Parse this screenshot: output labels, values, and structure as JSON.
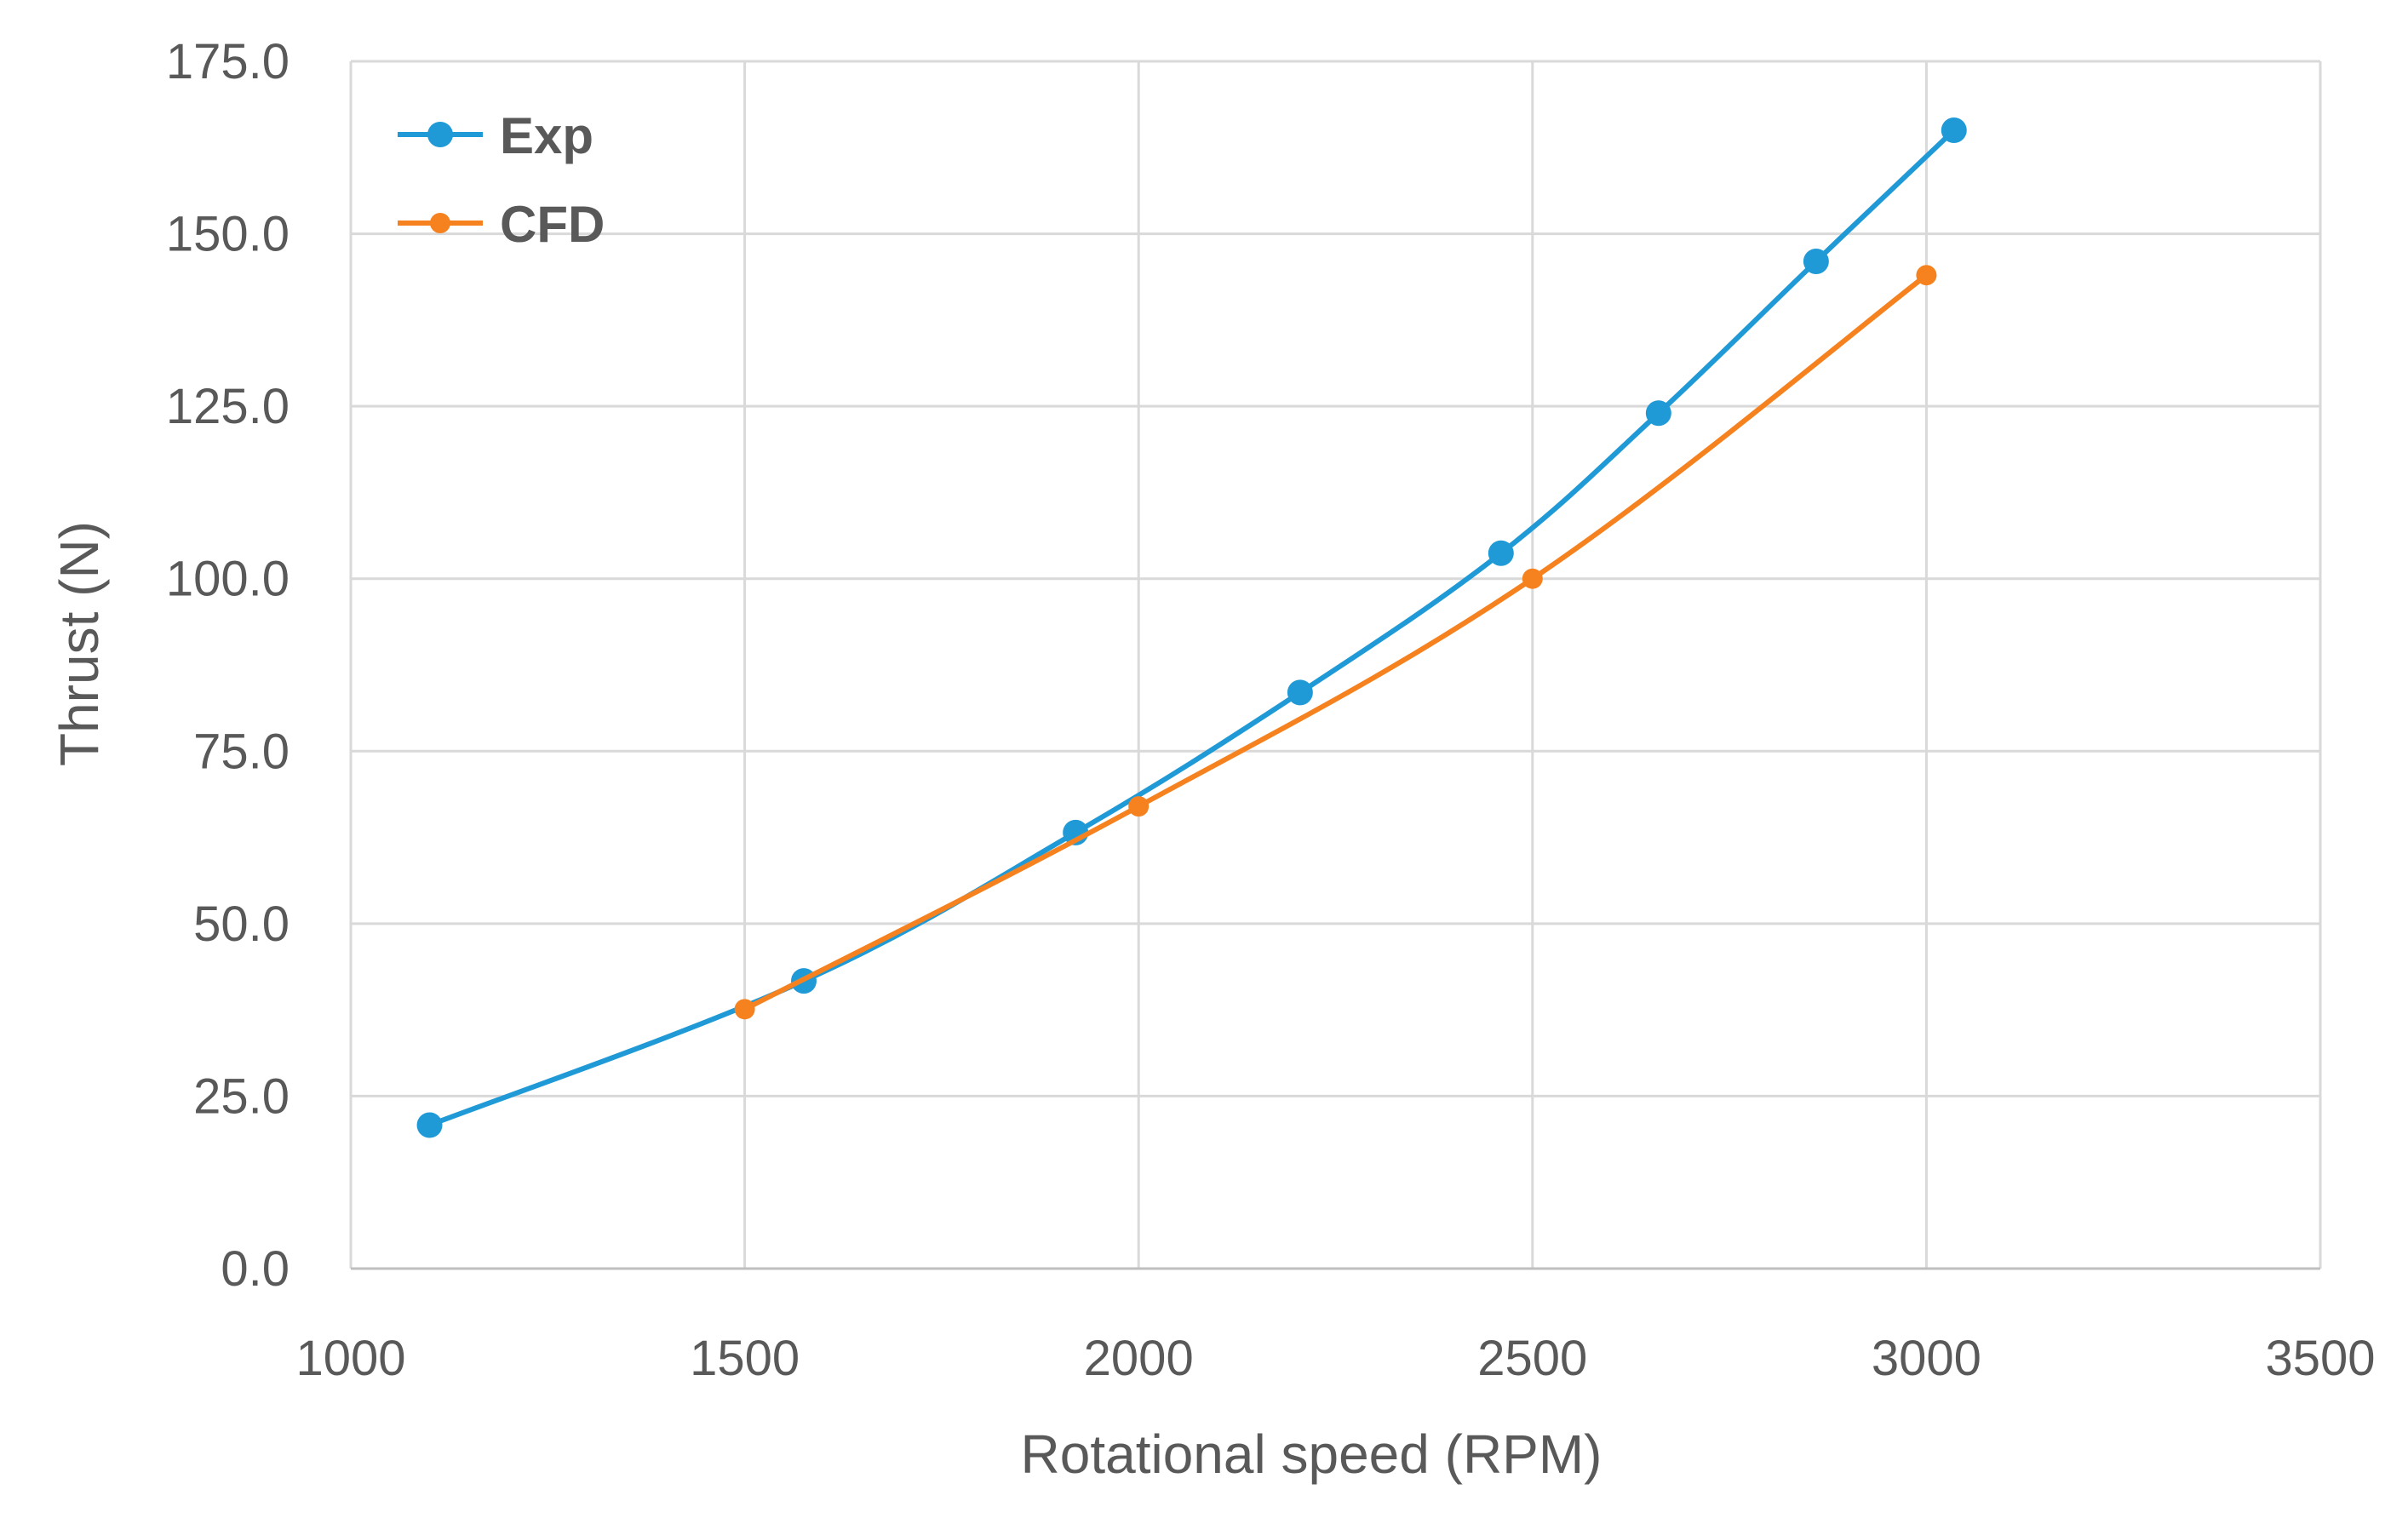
{
  "chart_data": {
    "type": "line",
    "title": "",
    "xlabel": "Rotational speed (RPM)",
    "ylabel": "Thrust (N)",
    "xlim": [
      1000,
      3500
    ],
    "ylim": [
      0,
      175
    ],
    "xticks": [
      1000,
      1500,
      2000,
      2500,
      3000,
      3500
    ],
    "yticks": [
      0,
      25,
      50,
      75,
      100,
      125,
      150,
      175
    ],
    "x_tick_labels": [
      "1000",
      "1500",
      "2000",
      "2500",
      "3000",
      "3500"
    ],
    "y_tick_labels": [
      "0.0",
      "25.0",
      "50.0",
      "75.0",
      "100.0",
      "125.0",
      "150.0",
      "175.0"
    ],
    "grid": true,
    "legend_position": "top-left",
    "series": [
      {
        "name": "Exp",
        "color": "#1f9ad6",
        "x": [
          1100,
          1575,
          1920,
          2205,
          2460,
          2660,
          2860,
          3035
        ],
        "y": [
          20.8,
          41.7,
          63.2,
          83.5,
          103.7,
          124.0,
          146.0,
          165.0
        ]
      },
      {
        "name": "CFD",
        "color": "#f5821f",
        "x": [
          1500,
          2000,
          2500,
          3000
        ],
        "y": [
          37.6,
          67.0,
          100.0,
          144.0
        ]
      }
    ]
  }
}
